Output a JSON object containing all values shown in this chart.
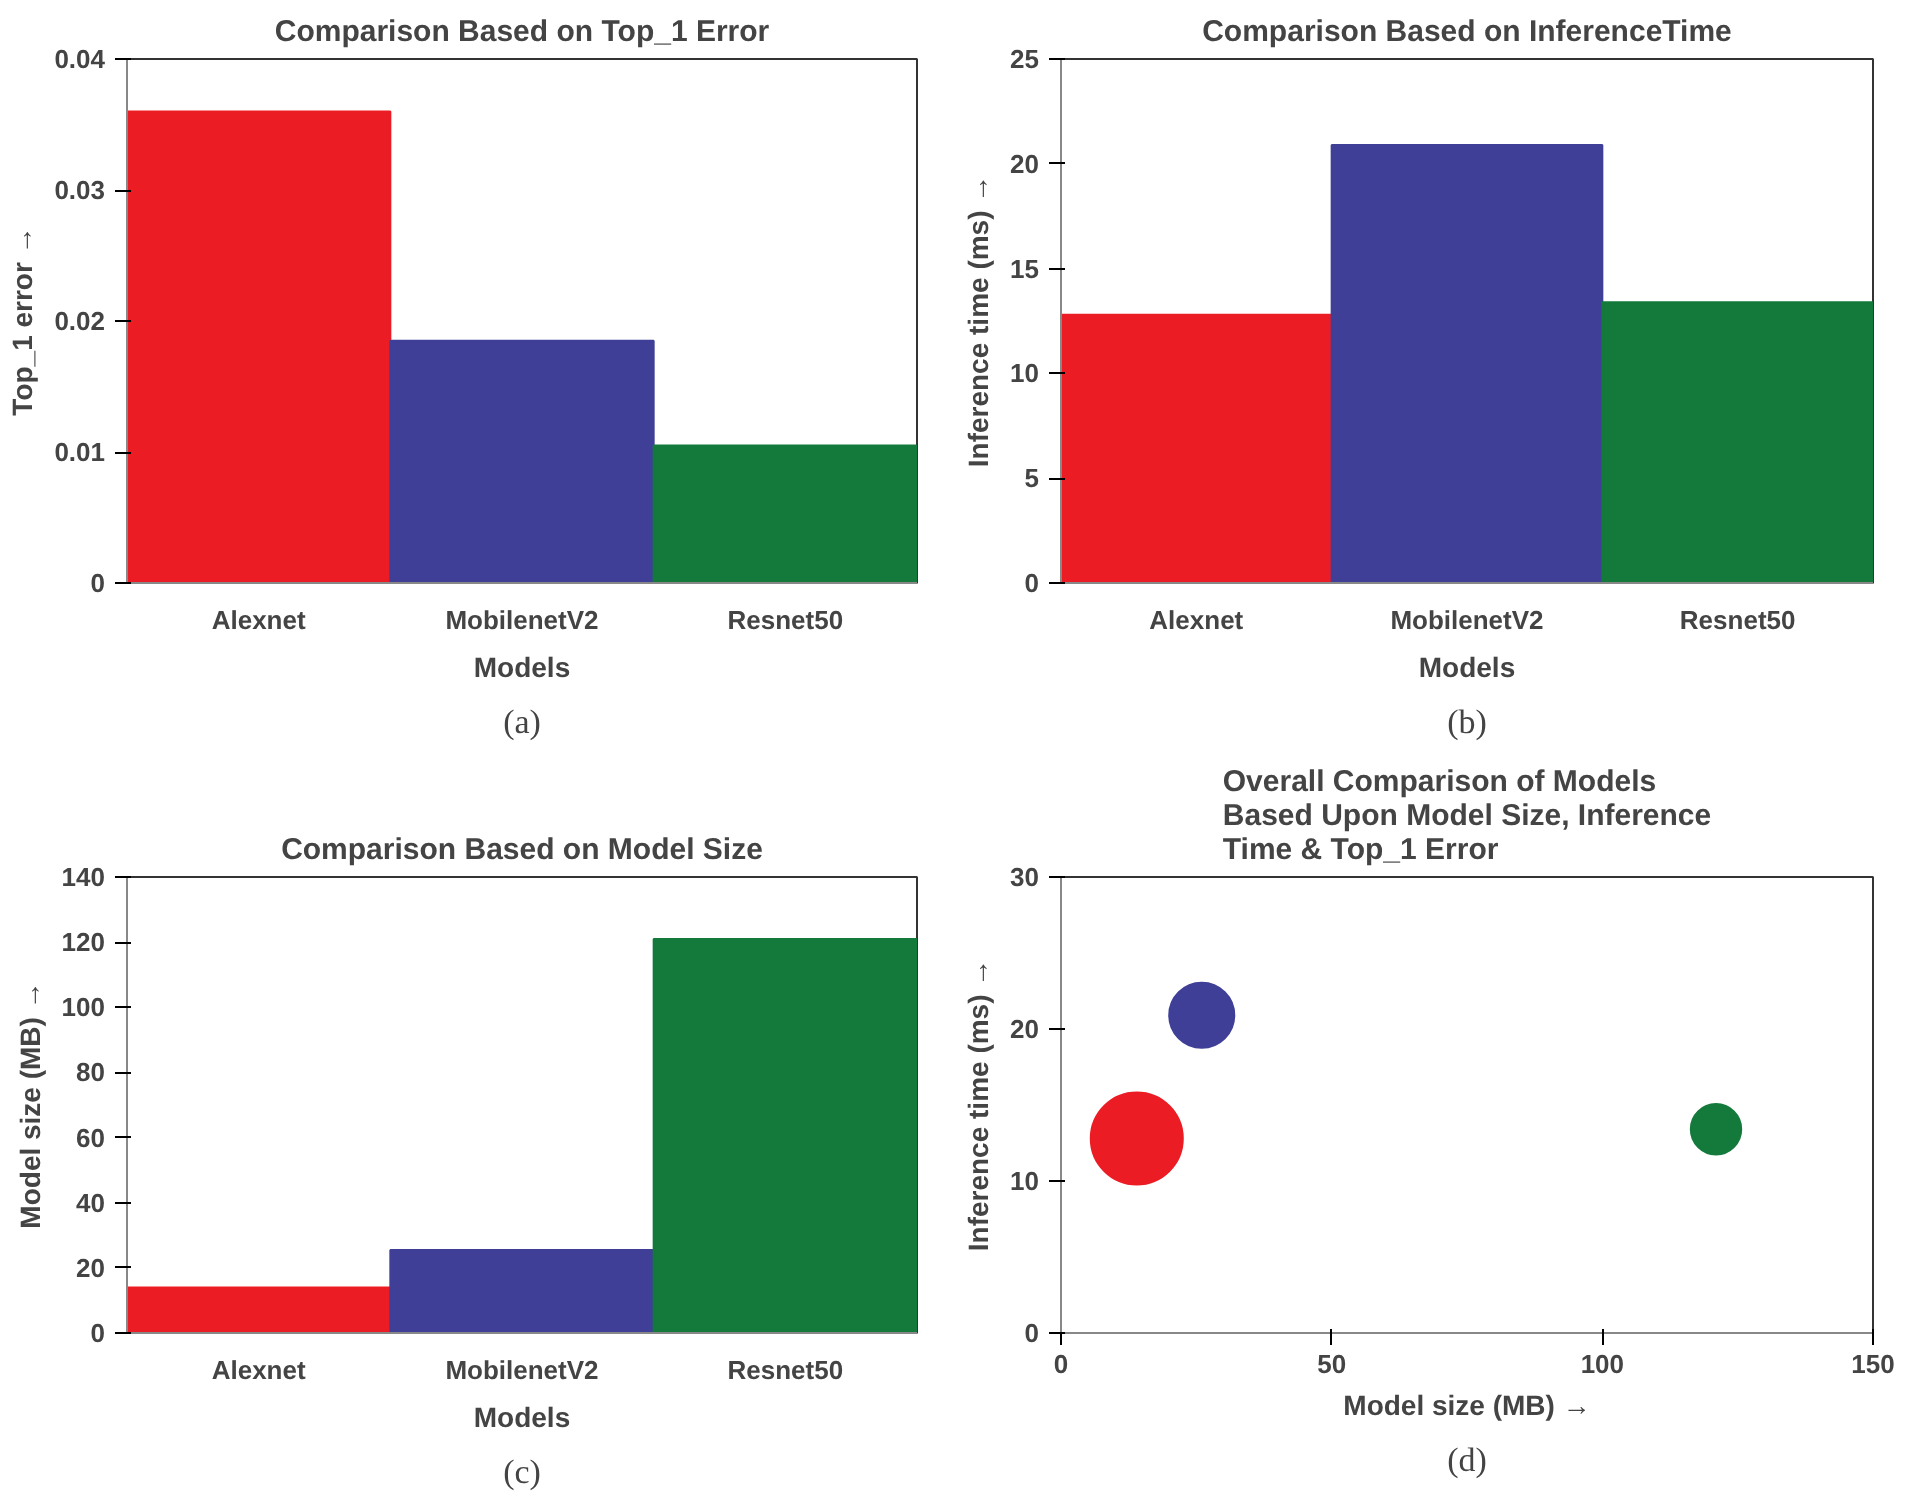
{
  "chart_data": [
    {
      "type": "bar",
      "title": "Comparison Based on Top_1 Error",
      "xlabel": "Models",
      "ylabel": "Top_1 error →",
      "categories": [
        "Alexnet",
        "MobilenetV2",
        "Resnet50"
      ],
      "values": [
        0.036,
        0.0185,
        0.0105
      ],
      "colors": [
        "#ec1c24",
        "#3f3f98",
        "#137a3b"
      ],
      "ylim": [
        0,
        0.04
      ],
      "yticks": [
        0,
        0.01,
        0.02,
        0.03,
        0.04
      ],
      "grid": false,
      "annotations": [
        "(a)"
      ]
    },
    {
      "type": "bar",
      "title": "Comparison Based on InferenceTime",
      "xlabel": "Models",
      "ylabel": "Inference time (ms) →",
      "categories": [
        "Alexnet",
        "MobilenetV2",
        "Resnet50"
      ],
      "values": [
        12.8,
        20.9,
        13.4
      ],
      "colors": [
        "#ec1c24",
        "#3f3f98",
        "#137a3b"
      ],
      "ylim": [
        0,
        25
      ],
      "yticks": [
        0,
        5,
        10,
        15,
        20,
        25
      ],
      "grid": false,
      "annotations": [
        "(b)"
      ]
    },
    {
      "type": "bar",
      "title": "Comparison Based on Model Size",
      "xlabel": "Models",
      "ylabel": "Model size (MB) →",
      "categories": [
        "Alexnet",
        "MobilenetV2",
        "Resnet50"
      ],
      "values": [
        14,
        25.5,
        121
      ],
      "colors": [
        "#ec1c24",
        "#3f3f98",
        "#137a3b"
      ],
      "ylim": [
        0,
        140
      ],
      "yticks": [
        0,
        20,
        40,
        60,
        80,
        100,
        120,
        140
      ],
      "grid": false,
      "annotations": [
        "(c)"
      ]
    },
    {
      "type": "bubble",
      "title": "Overall Comparison of Models Based Upon Model Size, Inference Time & Top_1 Error",
      "xlabel": "Model size (MB) →",
      "ylabel": "Inference time (ms) →",
      "x": [
        14,
        26,
        121
      ],
      "values": [
        12.8,
        20.9,
        13.4
      ],
      "sizes": [
        1,
        0.5,
        0.3
      ],
      "colors": [
        "#ec1c24",
        "#3f3f98",
        "#137a3b"
      ],
      "xlim": [
        0,
        150
      ],
      "xticks": [
        0,
        50,
        100,
        150
      ],
      "ylim": [
        0,
        30
      ],
      "yticks": [
        0,
        10,
        20,
        30
      ],
      "grid": false,
      "annotations": [
        "(d)"
      ]
    }
  ]
}
